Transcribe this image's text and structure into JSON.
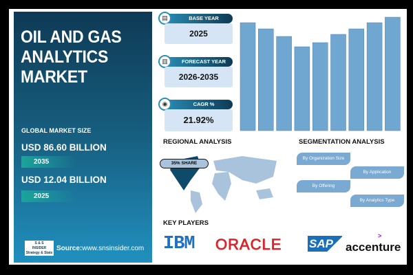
{
  "title": "OIL AND GAS ANALYTICS MARKET",
  "title_lines": [
    "OIL AND GAS",
    "ANALYTICS",
    "MARKET"
  ],
  "market": {
    "label": "GLOBAL MARKET SIZE",
    "forecast_value": "USD 86.60 BILLION",
    "forecast_year": "2035",
    "base_value": "USD 12.04 BILLION",
    "base_year": "2025"
  },
  "source": {
    "logo_text": "S&S INSIDER Strategy & Stats",
    "label": "Source:",
    "url": "www.snsinsider.com"
  },
  "info_cards": [
    {
      "label": "BASE YEAR",
      "value": "2025",
      "icon": "document-icon"
    },
    {
      "label": "FORECAST YEAR",
      "value": "2026-2035",
      "icon": "chart-icon"
    },
    {
      "label": "CAGR %",
      "value": "21.92%",
      "icon": "growth-icon"
    }
  ],
  "regional": {
    "title": "REGIONAL ANALYSIS",
    "share": "35% SHARE"
  },
  "segmentation": {
    "title": "SEGMENTATION ANALYSIS",
    "items": [
      "By Organization Size",
      "By Application",
      "By Offering",
      "By Analytics Type"
    ]
  },
  "key_players": {
    "title": "KEY PLAYERS",
    "brands": [
      "IBM",
      "ORACLE",
      "SAP",
      "accenture"
    ]
  },
  "colors": {
    "panel": "#175f80",
    "bar": "#6fa7d1",
    "map": "#aac3dc",
    "map_highlight": "#0e4a6a",
    "segment": "#7aa9d2",
    "oracle": "#d9252a",
    "ibm": "#1f70c1",
    "sap": "#1a6fb8"
  },
  "chart_data": {
    "type": "bar",
    "values": [
      157,
      148,
      137,
      122,
      128,
      140,
      148,
      157,
      165
    ],
    "ylim": [
      0,
      170
    ],
    "grid": false,
    "title": "",
    "xlabel": "",
    "ylabel": ""
  }
}
